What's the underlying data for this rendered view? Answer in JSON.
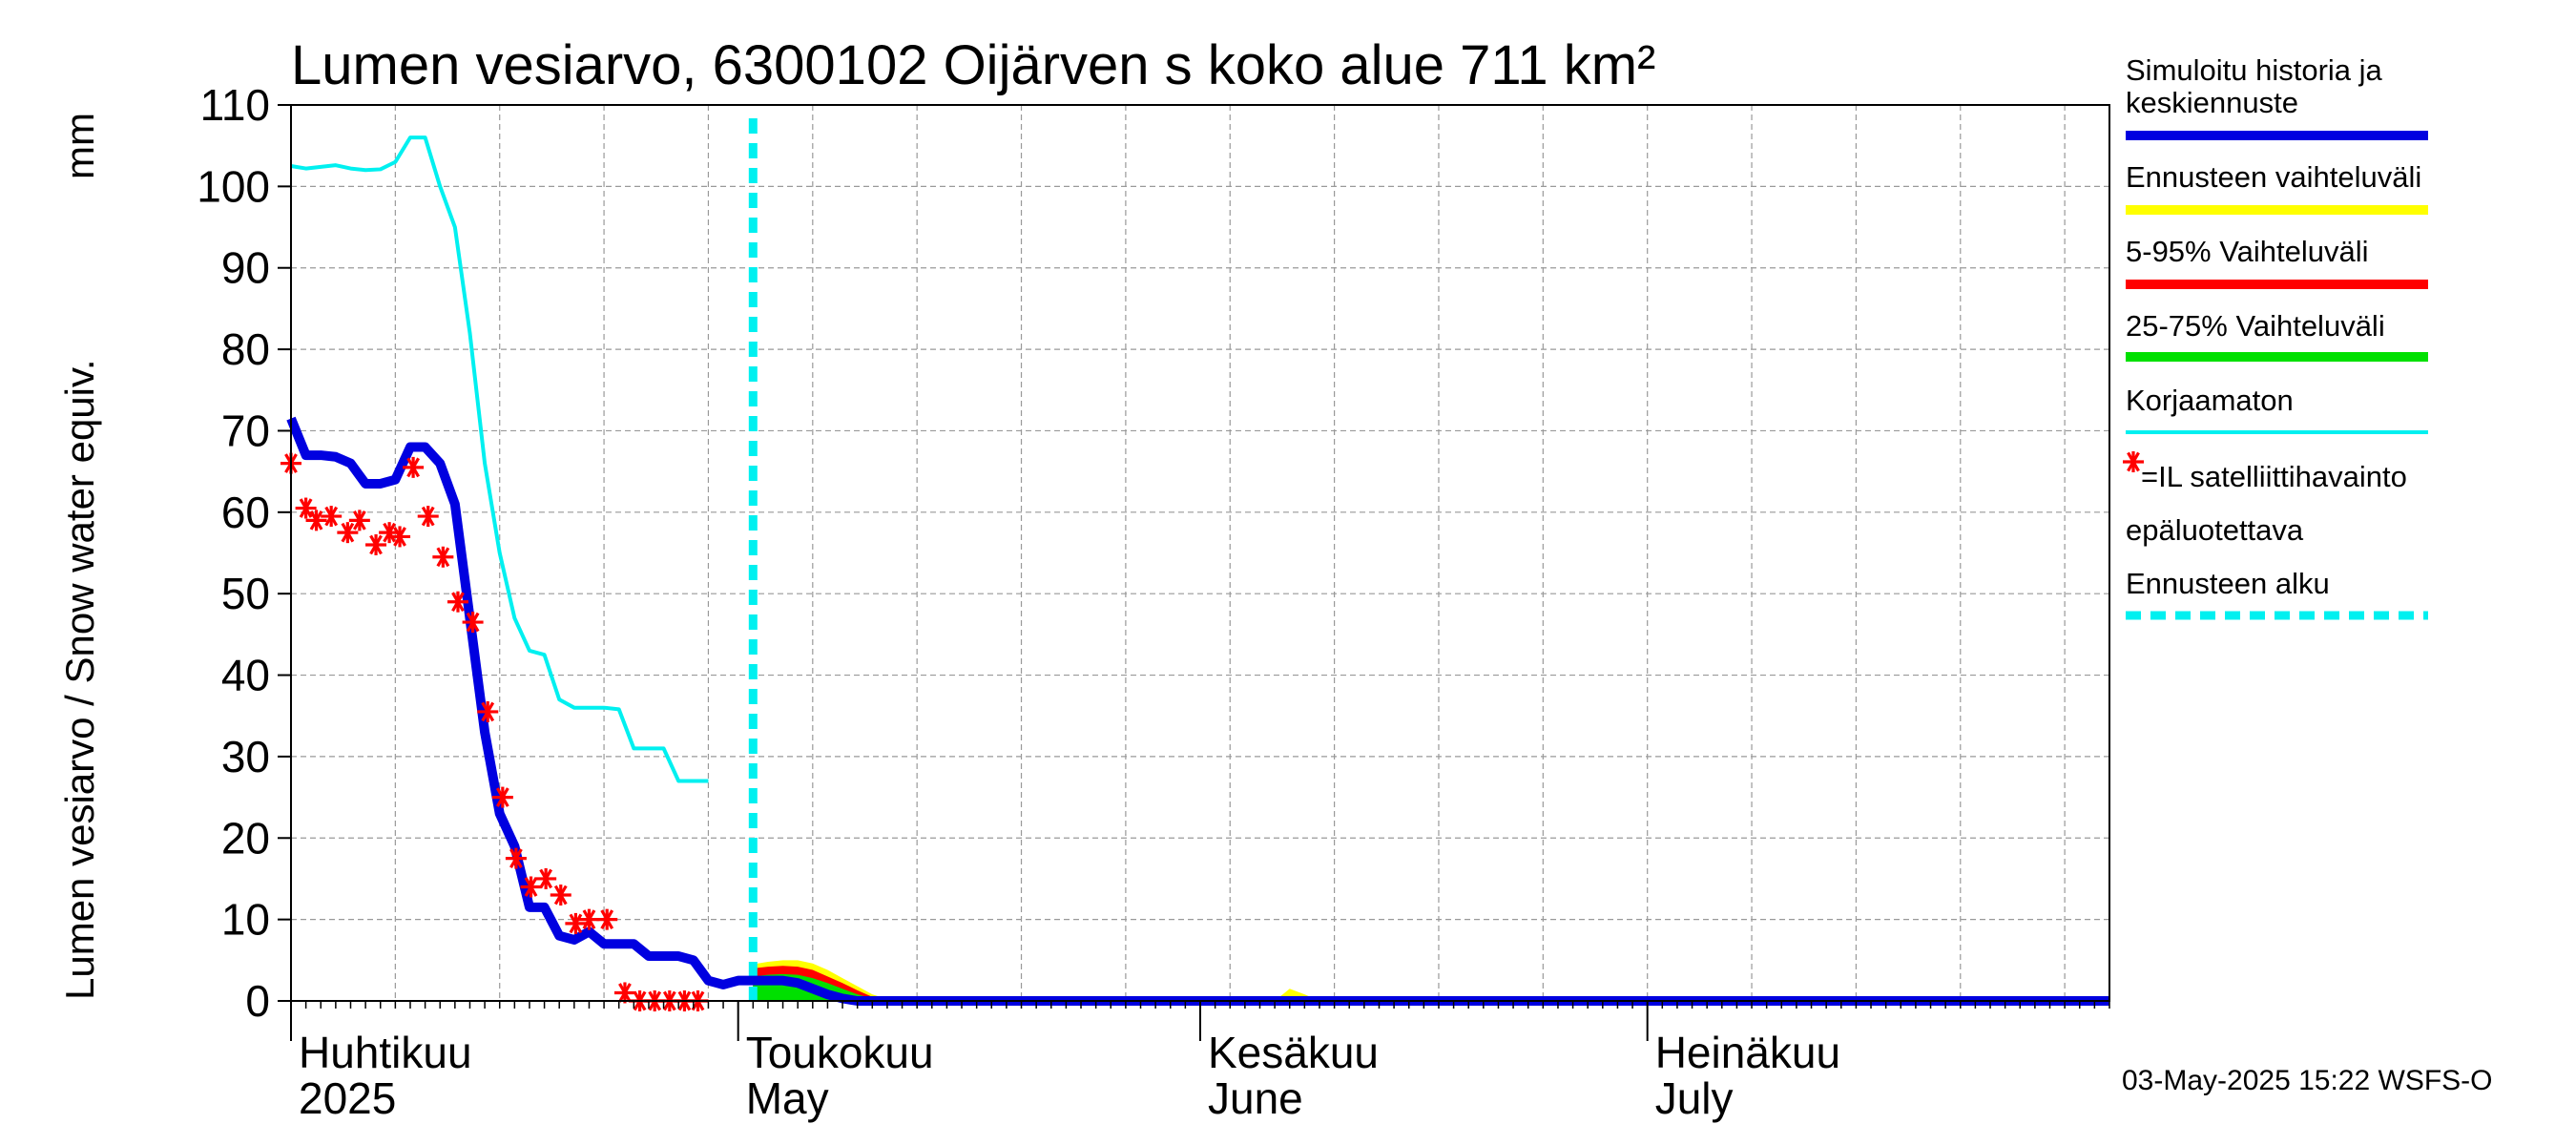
{
  "chart_data": {
    "type": "line",
    "title": "Lumen vesiarvo, 6300102 Oijärven s koko alue 711 km²",
    "ylabel_fi": "Lumen vesiarvo / Snow water equiv.",
    "ylabel_unit": "mm",
    "ylim": [
      0,
      110
    ],
    "yticks": [
      "0",
      "10",
      "20",
      "30",
      "40",
      "50",
      "60",
      "70",
      "80",
      "90",
      "100",
      "110"
    ],
    "xlim_day": [
      0,
      122
    ],
    "x_unit": "days since 2025-04-01",
    "grid": true,
    "month_labels": [
      {
        "fi": "Huhtikuu",
        "en": "2025",
        "day": 0
      },
      {
        "fi": "Toukokuu",
        "en": "May",
        "day": 30
      },
      {
        "fi": "Kesäkuu",
        "en": "June",
        "day": 61
      },
      {
        "fi": "Heinäkuu",
        "en": "July",
        "day": 91
      }
    ],
    "forecast_start_day": 31,
    "series": [
      {
        "name": "Korjaamaton",
        "color": "#00f0f0",
        "x": [
          0,
          1,
          2,
          3,
          4,
          5,
          6,
          7,
          8,
          9,
          10,
          11,
          12,
          13,
          14,
          15,
          16,
          17,
          18,
          19,
          20,
          21,
          22,
          23,
          24,
          25,
          26,
          27,
          28
        ],
        "y": [
          102.5,
          102.2,
          102.4,
          102.6,
          102.2,
          102,
          102.1,
          103,
          106,
          106,
          100,
          95,
          82,
          66,
          55,
          47,
          43,
          42.5,
          37,
          36,
          36,
          36,
          35.8,
          31,
          31,
          31,
          27,
          27,
          27
        ]
      },
      {
        "name": "Simuloitu historia ja keskiennuste",
        "color": "#0000e0",
        "x": [
          0,
          1,
          2,
          3,
          4,
          5,
          6,
          7,
          8,
          9,
          10,
          11,
          12,
          13,
          14,
          15,
          16,
          17,
          18,
          19,
          20,
          21,
          22,
          23,
          24,
          25,
          26,
          27,
          28,
          29,
          30,
          31,
          32,
          33,
          34,
          35,
          36,
          37,
          38,
          39,
          40,
          41,
          122
        ],
        "y": [
          71.5,
          67,
          67,
          66.8,
          66,
          63.5,
          63.5,
          64,
          68,
          68,
          66,
          61,
          47,
          33,
          23,
          19,
          11.5,
          11.5,
          8,
          7.5,
          8.5,
          7,
          7,
          7,
          5.5,
          5.5,
          5.5,
          5,
          2.5,
          2,
          2.5,
          2.5,
          2.5,
          2.5,
          2.2,
          1.5,
          0.8,
          0.3,
          0,
          0,
          0,
          0,
          0
        ]
      }
    ],
    "bands": [
      {
        "name": "Ennusteen vaihteluväli",
        "color": "#ffff00",
        "x": [
          31,
          32,
          33,
          34,
          35,
          36,
          37,
          38,
          39,
          40,
          41
        ],
        "upper": [
          4.5,
          4.8,
          5,
          5,
          4.6,
          3.8,
          2.8,
          1.8,
          0.8,
          0.2,
          0
        ]
      },
      {
        "name": "5-95% Vaihteluväli",
        "color": "#ff0000",
        "x": [
          31,
          32,
          33,
          34,
          35,
          36,
          37,
          38,
          39,
          40,
          41
        ],
        "upper": [
          4,
          4.2,
          4.3,
          4.2,
          3.8,
          3,
          2.2,
          1.3,
          0.5,
          0.1,
          0
        ]
      },
      {
        "name": "25-75% Vaihteluväli",
        "color": "#00e000",
        "x": [
          31,
          32,
          33,
          34,
          35,
          36,
          37,
          38,
          39,
          40,
          41
        ],
        "upper": [
          3,
          3.2,
          3.3,
          3.2,
          2.8,
          2.2,
          1.5,
          0.8,
          0.3,
          0,
          0
        ]
      },
      {
        "name": "Ennusteen vaihteluväli (kesäkuu)",
        "color": "#ffff00",
        "x": [
          66,
          67,
          68,
          69
        ],
        "upper": [
          0,
          1.5,
          0.8,
          0
        ]
      }
    ],
    "observations": {
      "name": "=IL satelliittihavainto epäluotettava",
      "color": "#ff0000",
      "x": [
        0,
        1,
        1.7,
        2.7,
        3.8,
        4.6,
        5.7,
        6.6,
        7.3,
        8.2,
        9.2,
        10.2,
        11.2,
        12.2,
        13.2,
        14.2,
        15.1,
        16.1,
        17.1,
        18.1,
        19.1,
        20,
        21.2,
        22.4,
        23.4,
        24.4,
        25.4,
        26.4,
        27.3
      ],
      "y": [
        66,
        60.5,
        59,
        59.5,
        57.5,
        59,
        56,
        57.5,
        57,
        65.5,
        59.5,
        54.5,
        49,
        46.5,
        35.5,
        25,
        17.5,
        14,
        15,
        13,
        9.5,
        10,
        10,
        1,
        0,
        0,
        0,
        0,
        0
      ]
    },
    "legend": [
      {
        "label": "Simuloitu historia ja",
        "label2": "keskiennuste",
        "color": "#0000e0"
      },
      {
        "label": "Ennusteen vaihteluväli",
        "color": "#ffff00"
      },
      {
        "label": "5-95% Vaihteluväli",
        "color": "#ff0000"
      },
      {
        "label": "25-75% Vaihteluväli",
        "color": "#00e000"
      },
      {
        "label": "Korjaamaton",
        "color": "#00f0f0"
      },
      {
        "label": "=IL satelliittihavainto",
        "label2": "epäluotettava",
        "color": "#ff0000"
      },
      {
        "label": "Ennusteen alku",
        "color": "#00f0f0"
      }
    ],
    "legend_position": "right",
    "timestamp": "03-May-2025 15:22 WSFS-O"
  }
}
